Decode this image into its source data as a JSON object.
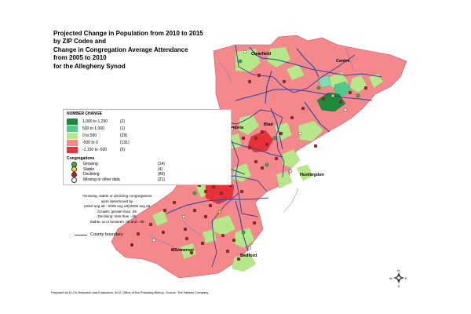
{
  "title_lines": [
    "Projected Change in Population from 2010 to 2015",
    "by ZIP Codes and",
    "Change in Congregation Average Attendance",
    "from 2005 to 2010",
    "for the Allegheny Synod"
  ],
  "legend": {
    "number_change_title": "NUMBER CHANGE",
    "number_change_items": [
      {
        "range": "1,000 to 1,290",
        "count": "(2)",
        "color": "#1e8a3c"
      },
      {
        "range": "500 to 1,000",
        "count": "(1)",
        "color": "#4fc98c"
      },
      {
        "range": "0 to 500",
        "count": "(29)",
        "color": "#b6e88a"
      },
      {
        "range": "-500 to 0",
        "count": "(131)",
        "color": "#f5888a"
      },
      {
        "range": "-1,150 to -500",
        "count": "(6)",
        "color": "#e8323a"
      }
    ],
    "congregations_title": "Congregations",
    "congregation_items": [
      {
        "label": "Growing",
        "count": "(14)",
        "color": "#2eb83a"
      },
      {
        "label": "Stable",
        "count": "(4)",
        "color": "#f0e030"
      },
      {
        "label": "Declining",
        "count": "(86)",
        "color": "#b81e1e"
      },
      {
        "label": "Missing or other data",
        "count": "(21)",
        "color": "#ffffff"
      }
    ]
  },
  "note_lines": [
    "*Growing, stable or declining congregations",
    "were determined by",
    "(2010 avg att - 2005 avg att)/2005 avg att",
    "Growth: greater than .05",
    "Declining: less than -.05",
    "Stable: at or between .05 and -.05"
  ],
  "county_boundary_label": "County boundary",
  "counties": [
    "Clearfield",
    "Centre",
    "Cambria",
    "Blair",
    "Huntingdon",
    "Somerset",
    "Bedford"
  ],
  "compass": {
    "n": "N",
    "s": "S",
    "e": "E",
    "w": "W"
  },
  "credit": "Prepared by ELCA Research and Evaluation, 9/12, Office of the Presiding Bishop, Source: The Nielsen Company",
  "colors": {
    "pink_decline": "#f5888a",
    "red_decline": "#e8323a",
    "light_green_growth": "#b6e88a",
    "dark_green_growth": "#1e8a3c",
    "river_blue": "#2848a8",
    "road_blue": "#2a2ab0",
    "county_line": "#3a3a9c"
  }
}
